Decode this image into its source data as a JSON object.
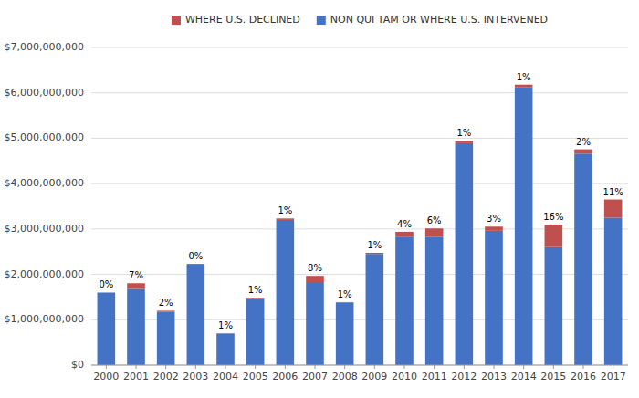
{
  "chart_data": {
    "type": "bar",
    "stacked": true,
    "categories": [
      "2000",
      "2001",
      "2002",
      "2003",
      "2004",
      "2005",
      "2006",
      "2007",
      "2008",
      "2009",
      "2010",
      "2011",
      "2012",
      "2013",
      "2014",
      "2015",
      "2016",
      "2017"
    ],
    "series": [
      {
        "name": "NON QUI TAM OR WHERE U.S. INTERVENED",
        "color": "#4472C4",
        "values": [
          1600000000,
          1680000000,
          1175000000,
          2230000000,
          695000000,
          1470000000,
          3200000000,
          1810000000,
          1375000000,
          2450000000,
          2820000000,
          2830000000,
          4890000000,
          2960000000,
          6120000000,
          2600000000,
          4660000000,
          3250000000
        ]
      },
      {
        "name": "WHERE U.S. DECLINED",
        "color": "#C0504D",
        "values": [
          0,
          125000000,
          24000000,
          0,
          7000000,
          15000000,
          32000000,
          158000000,
          14000000,
          25000000,
          118000000,
          182000000,
          49000000,
          92000000,
          61000000,
          497000000,
          95000000,
          400000000
        ]
      }
    ],
    "annotations": [
      {
        "category": "2000",
        "text": "0%"
      },
      {
        "category": "2001",
        "text": "7%"
      },
      {
        "category": "2002",
        "text": "2%"
      },
      {
        "category": "2003",
        "text": "0%"
      },
      {
        "category": "2004",
        "text": "1%"
      },
      {
        "category": "2005",
        "text": "1%"
      },
      {
        "category": "2006",
        "text": "1%"
      },
      {
        "category": "2007",
        "text": "8%"
      },
      {
        "category": "2008",
        "text": "1%"
      },
      {
        "category": "2009",
        "text": "1%"
      },
      {
        "category": "2010",
        "text": "4%"
      },
      {
        "category": "2011",
        "text": "6%"
      },
      {
        "category": "2012",
        "text": "1%"
      },
      {
        "category": "2013",
        "text": "3%"
      },
      {
        "category": "2014",
        "text": "1%"
      },
      {
        "category": "2015",
        "text": "16%"
      },
      {
        "category": "2016",
        "text": "2%"
      },
      {
        "category": "2017",
        "text": "11%"
      }
    ],
    "ylim": [
      0,
      7000000000
    ],
    "yticks": [
      {
        "value": 0,
        "label": "$0"
      },
      {
        "value": 1000000000,
        "label": "$1,000,000,000"
      },
      {
        "value": 2000000000,
        "label": "$2,000,000,000"
      },
      {
        "value": 3000000000,
        "label": "$3,000,000,000"
      },
      {
        "value": 4000000000,
        "label": "$4,000,000,000"
      },
      {
        "value": 5000000000,
        "label": "$5,000,000,000"
      },
      {
        "value": 6000000000,
        "label": "$6,000,000,000"
      },
      {
        "value": 7000000000,
        "label": "$7,000,000,000"
      }
    ],
    "grid": true,
    "legend": "top"
  }
}
